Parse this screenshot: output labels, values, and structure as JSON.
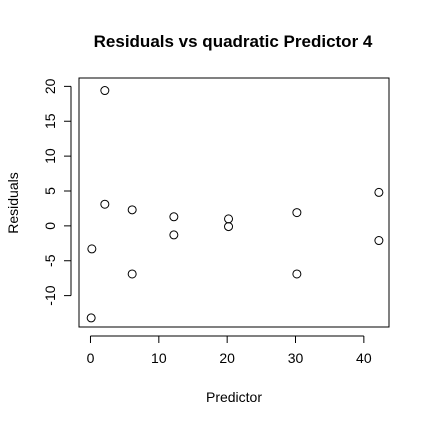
{
  "chart_data": {
    "type": "scatter",
    "title": "Residuals vs quadratic Predictor 4",
    "xlabel": "Predictor",
    "ylabel": "Residuals",
    "xlim": [
      -1.68,
      43.68
    ],
    "ylim": [
      -14.5,
      21.2
    ],
    "x_ticks": [
      0,
      10,
      20,
      30,
      40
    ],
    "y_ticks": [
      -10,
      -5,
      0,
      5,
      10,
      15,
      20
    ],
    "grid": false,
    "legend": "none",
    "points": [
      {
        "x": 0.1,
        "y": -13.2
      },
      {
        "x": 0.2,
        "y": -3.3
      },
      {
        "x": 2.1,
        "y": 19.4
      },
      {
        "x": 2.1,
        "y": 3.1
      },
      {
        "x": 6.1,
        "y": 2.3
      },
      {
        "x": 6.1,
        "y": -6.9
      },
      {
        "x": 12.2,
        "y": 1.3
      },
      {
        "x": 12.2,
        "y": -1.3
      },
      {
        "x": 20.2,
        "y": 1.0
      },
      {
        "x": 20.2,
        "y": -0.1
      },
      {
        "x": 30.2,
        "y": 1.9
      },
      {
        "x": 30.2,
        "y": -6.9
      },
      {
        "x": 42.2,
        "y": 4.8
      },
      {
        "x": 42.2,
        "y": -2.1
      }
    ]
  }
}
